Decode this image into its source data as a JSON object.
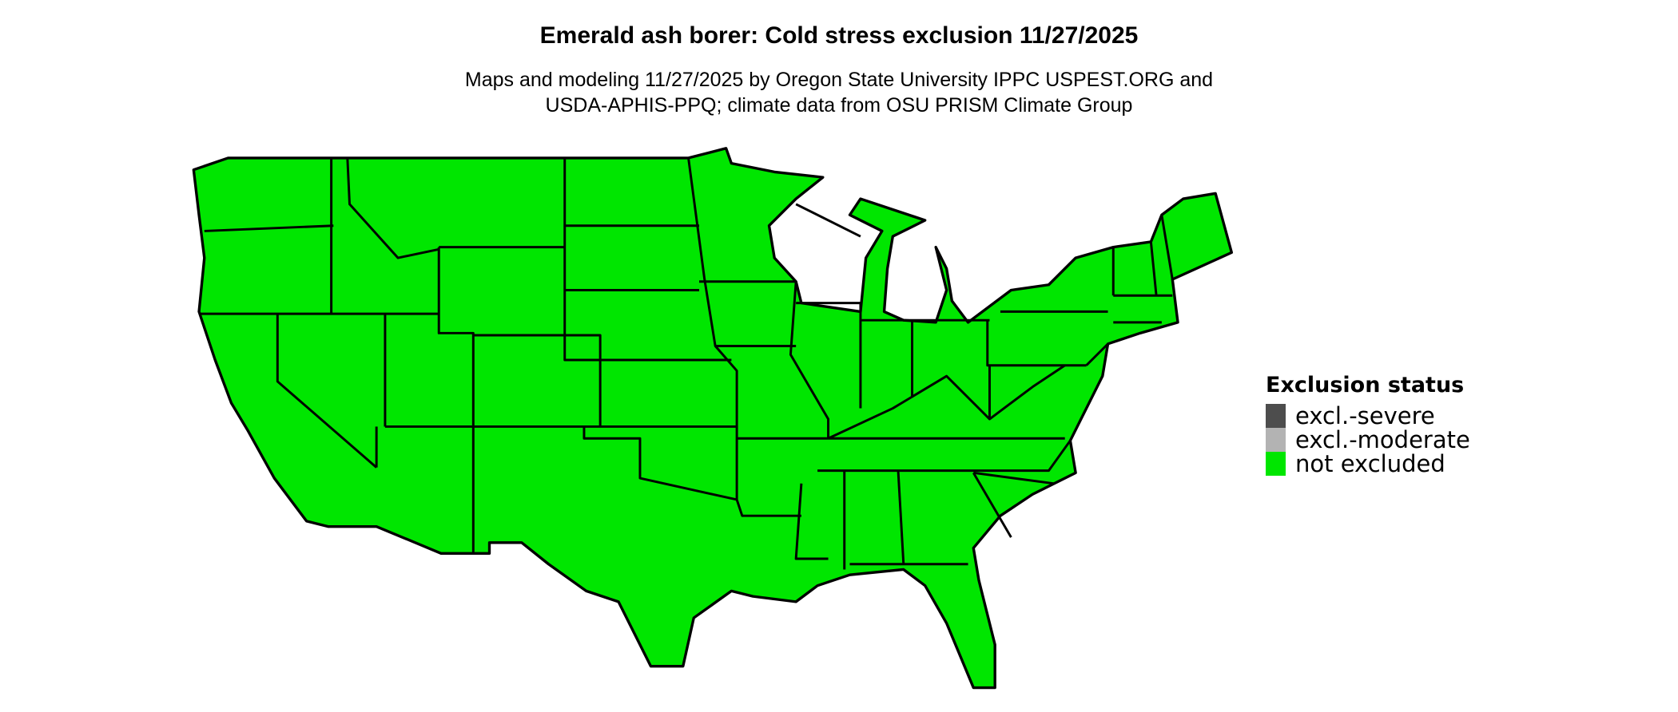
{
  "title": "Emerald ash borer: Cold stress exclusion 11/27/2025",
  "subtitle_line1": "Maps and modeling 11/27/2025 by Oregon State University IPPC USPEST.ORG and",
  "subtitle_line2": "USDA-APHIS-PPQ; climate data from OSU PRISM Climate Group",
  "map": {
    "region": "Contiguous United States",
    "fill_status": "not excluded",
    "fill_color": "#00e600",
    "border_color": "#000000"
  },
  "legend": {
    "title": "Exclusion status",
    "items": [
      {
        "label": "excl.-severe",
        "color": "#4d4d4d"
      },
      {
        "label": "excl.-moderate",
        "color": "#b3b3b3"
      },
      {
        "label": "not excluded",
        "color": "#00e600"
      }
    ]
  }
}
